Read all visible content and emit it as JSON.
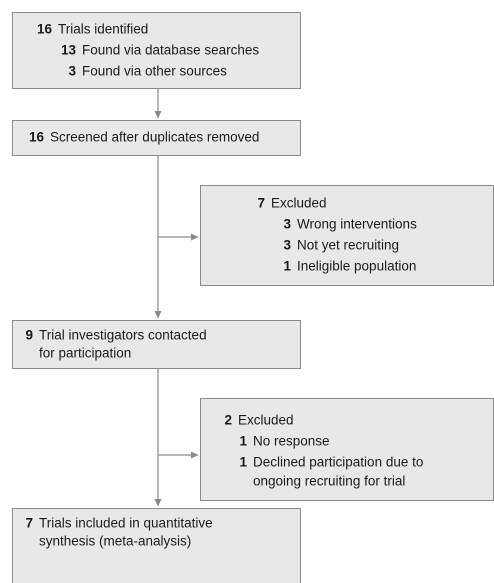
{
  "nodes": [
    {
      "count": 16,
      "lines": [
        "Trials identified"
      ],
      "items": [
        {
          "count": 13,
          "lines": [
            "Found via database searches"
          ]
        },
        {
          "count": 3,
          "lines": [
            "Found via other sources"
          ]
        }
      ]
    },
    {
      "count": 16,
      "lines": [
        "Screened after duplicates removed"
      ],
      "items": []
    },
    {
      "count": 7,
      "lines": [
        "Excluded"
      ],
      "items": [
        {
          "count": 3,
          "lines": [
            "Wrong interventions"
          ]
        },
        {
          "count": 3,
          "lines": [
            "Not yet recruiting"
          ]
        },
        {
          "count": 1,
          "lines": [
            "Ineligible population"
          ]
        }
      ]
    },
    {
      "count": 9,
      "lines": [
        "Trial investigators contacted",
        "for participation"
      ],
      "items": []
    },
    {
      "count": 2,
      "lines": [
        "Excluded"
      ],
      "items": [
        {
          "count": 1,
          "lines": [
            "No response"
          ]
        },
        {
          "count": 1,
          "lines": [
            "Declined participation due to",
            "ongoing recruiting for trial"
          ]
        }
      ]
    },
    {
      "count": 7,
      "lines": [
        "Trials included in quantitative",
        "synthesis (meta-analysis)"
      ],
      "items": []
    }
  ]
}
